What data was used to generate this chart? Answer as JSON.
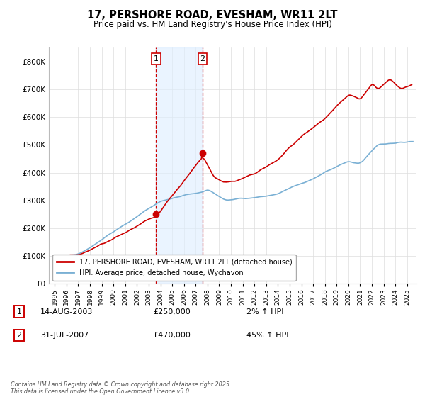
{
  "title": "17, PERSHORE ROAD, EVESHAM, WR11 2LT",
  "subtitle": "Price paid vs. HM Land Registry's House Price Index (HPI)",
  "ytick_values": [
    0,
    100000,
    200000,
    300000,
    400000,
    500000,
    600000,
    700000,
    800000
  ],
  "ylim": [
    0,
    850000
  ],
  "xlim_start": 1994.5,
  "xlim_end": 2025.8,
  "line_color_red": "#cc0000",
  "line_color_blue": "#7ab0d4",
  "transaction1_price": 250000,
  "transaction1_x": 2003.62,
  "transaction2_price": 470000,
  "transaction2_x": 2007.58,
  "legend_label_red": "17, PERSHORE ROAD, EVESHAM, WR11 2LT (detached house)",
  "legend_label_blue": "HPI: Average price, detached house, Wychavon",
  "footer_text": "Contains HM Land Registry data © Crown copyright and database right 2025.\nThis data is licensed under the Open Government Licence v3.0.",
  "background_color": "#ffffff",
  "grid_color": "#dddddd",
  "shade_color": "#ddeeff",
  "transaction1_date": "14-AUG-2003",
  "transaction2_date": "31-JUL-2007",
  "pct1": "2%",
  "pct2": "45%"
}
